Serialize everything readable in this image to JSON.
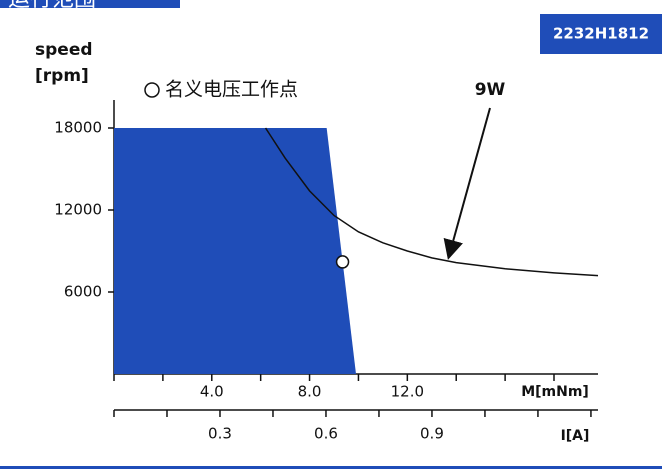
{
  "chart_data": {
    "type": "operating_range",
    "title": "运行范围",
    "model": "2232H1812",
    "y_label_line1": "speed",
    "y_label_line2": "[rpm]",
    "x_label": "M[mNm]",
    "x2_label": "I[A]",
    "region_color": "#1f4db8",
    "region": {
      "x": [
        0,
        0,
        8.7,
        9.9
      ],
      "y": [
        0,
        18000,
        18000,
        0
      ]
    },
    "series": [
      {
        "name": "9W",
        "color": "#111111",
        "x": [
          6.2,
          7,
          8,
          9,
          10,
          11,
          12,
          13,
          14,
          16,
          18,
          19.8
        ],
        "values": [
          18000,
          15800,
          13400,
          11600,
          10400,
          9600,
          9000,
          8500,
          8150,
          7700,
          7400,
          7200
        ]
      }
    ],
    "point": {
      "name": "名义电压工作点",
      "x": 9.35,
      "y": 8200
    },
    "ylim": [
      0,
      18000
    ],
    "yticks": [
      6000,
      12000,
      18000
    ],
    "xlim": [
      0,
      19.8
    ],
    "xticks": [
      {
        "value": 4,
        "label": "4.0"
      },
      {
        "value": 8,
        "label": "8.0"
      },
      {
        "value": 12,
        "label": "12.0"
      }
    ],
    "xminor_ticks": [
      0,
      2,
      6,
      10,
      14,
      16,
      18
    ],
    "x2lim": [
      0,
      1.37
    ],
    "x2ticks": [
      {
        "value": 0.3,
        "label": "0.3"
      },
      {
        "value": 0.6,
        "label": "0.6"
      },
      {
        "value": 0.9,
        "label": "0.9"
      }
    ],
    "x2minor_ticks": [
      0,
      0.15,
      0.45,
      0.75,
      1.05,
      1.2,
      1.35
    ]
  }
}
